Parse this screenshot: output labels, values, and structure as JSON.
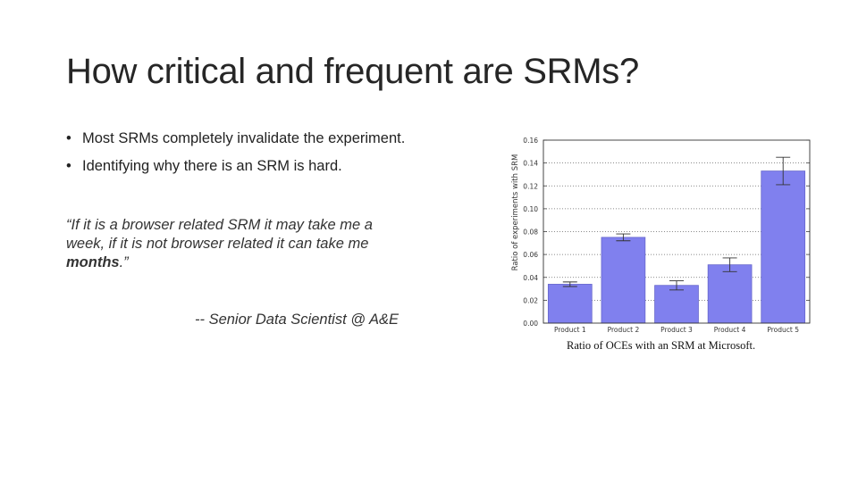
{
  "slide": {
    "title": "How critical and frequent are SRMs?",
    "bullets": [
      "Most SRMs completely invalidate the experiment.",
      "Identifying why there is an SRM is hard."
    ],
    "quote_lines": [
      "“If it is a browser related SRM it may take me a",
      "week, if it is not browser    related it can take me"
    ],
    "quote_last_strong": "months",
    "quote_last_end": ".”",
    "attribution": "-- Senior Data Scientist @ A&E",
    "caption": "Ratio of OCEs with an SRM at Microsoft."
  },
  "chart_data": {
    "type": "bar",
    "categories": [
      "Product 1",
      "Product 2",
      "Product 3",
      "Product 4",
      "Product 5"
    ],
    "values": [
      0.034,
      0.075,
      0.033,
      0.051,
      0.133
    ],
    "errors": [
      0.002,
      0.003,
      0.004,
      0.006,
      0.012
    ],
    "title": "",
    "xlabel": "",
    "ylabel": "Ratio of experiments with SRM",
    "ylim": [
      0,
      0.16
    ],
    "yticks": [
      "0.00",
      "0.02",
      "0.04",
      "0.06",
      "0.08",
      "0.10",
      "0.12",
      "0.14",
      "0.16"
    ],
    "grid": true,
    "bar_color": "#8080ee",
    "bar_edge": "#6666cc"
  }
}
